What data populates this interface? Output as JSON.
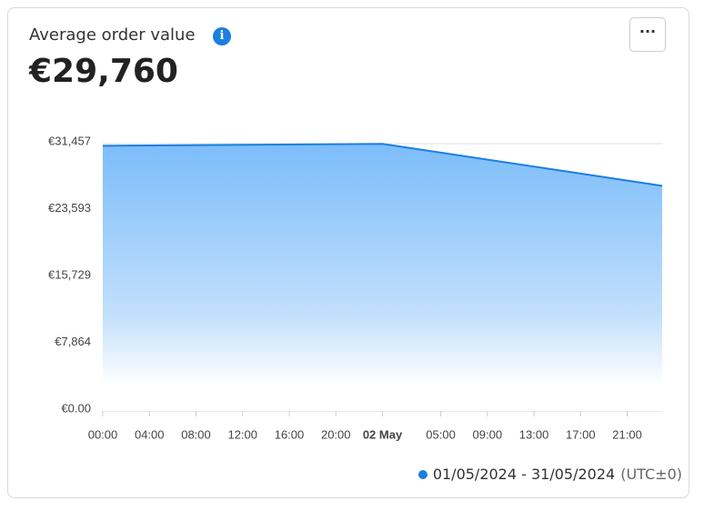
{
  "chart_data": {
    "type": "area",
    "title": "Average order value",
    "summary": "€29,760",
    "x": [
      0,
      24,
      48
    ],
    "series": [
      {
        "name": "01/05/2024 - 31/05/2024",
        "color": "#1a7fe0",
        "values": [
          31200,
          31430,
          26500
        ]
      }
    ],
    "timezone": "(UTC±0)",
    "xlim": [
      0,
      48
    ],
    "xticks": [
      {
        "value": 0,
        "label": "00:00"
      },
      {
        "value": 4,
        "label": "04:00"
      },
      {
        "value": 8,
        "label": "08:00"
      },
      {
        "value": 12,
        "label": "12:00"
      },
      {
        "value": 16,
        "label": "16:00"
      },
      {
        "value": 20,
        "label": "20:00"
      },
      {
        "value": 24,
        "label": "02 May",
        "bold": true
      },
      {
        "value": 29,
        "label": "05:00"
      },
      {
        "value": 33,
        "label": "09:00"
      },
      {
        "value": 37,
        "label": "13:00"
      },
      {
        "value": 41,
        "label": "17:00"
      },
      {
        "value": 45,
        "label": "21:00"
      }
    ],
    "ylim": [
      0,
      31457
    ],
    "yticks": [
      {
        "value": 0,
        "label": "€0.00"
      },
      {
        "value": 7864,
        "label": "€7,864"
      },
      {
        "value": 15729,
        "label": "€15,729"
      },
      {
        "value": 23593,
        "label": "€23,593"
      },
      {
        "value": 31457,
        "label": "€31,457"
      }
    ],
    "grid": true
  }
}
